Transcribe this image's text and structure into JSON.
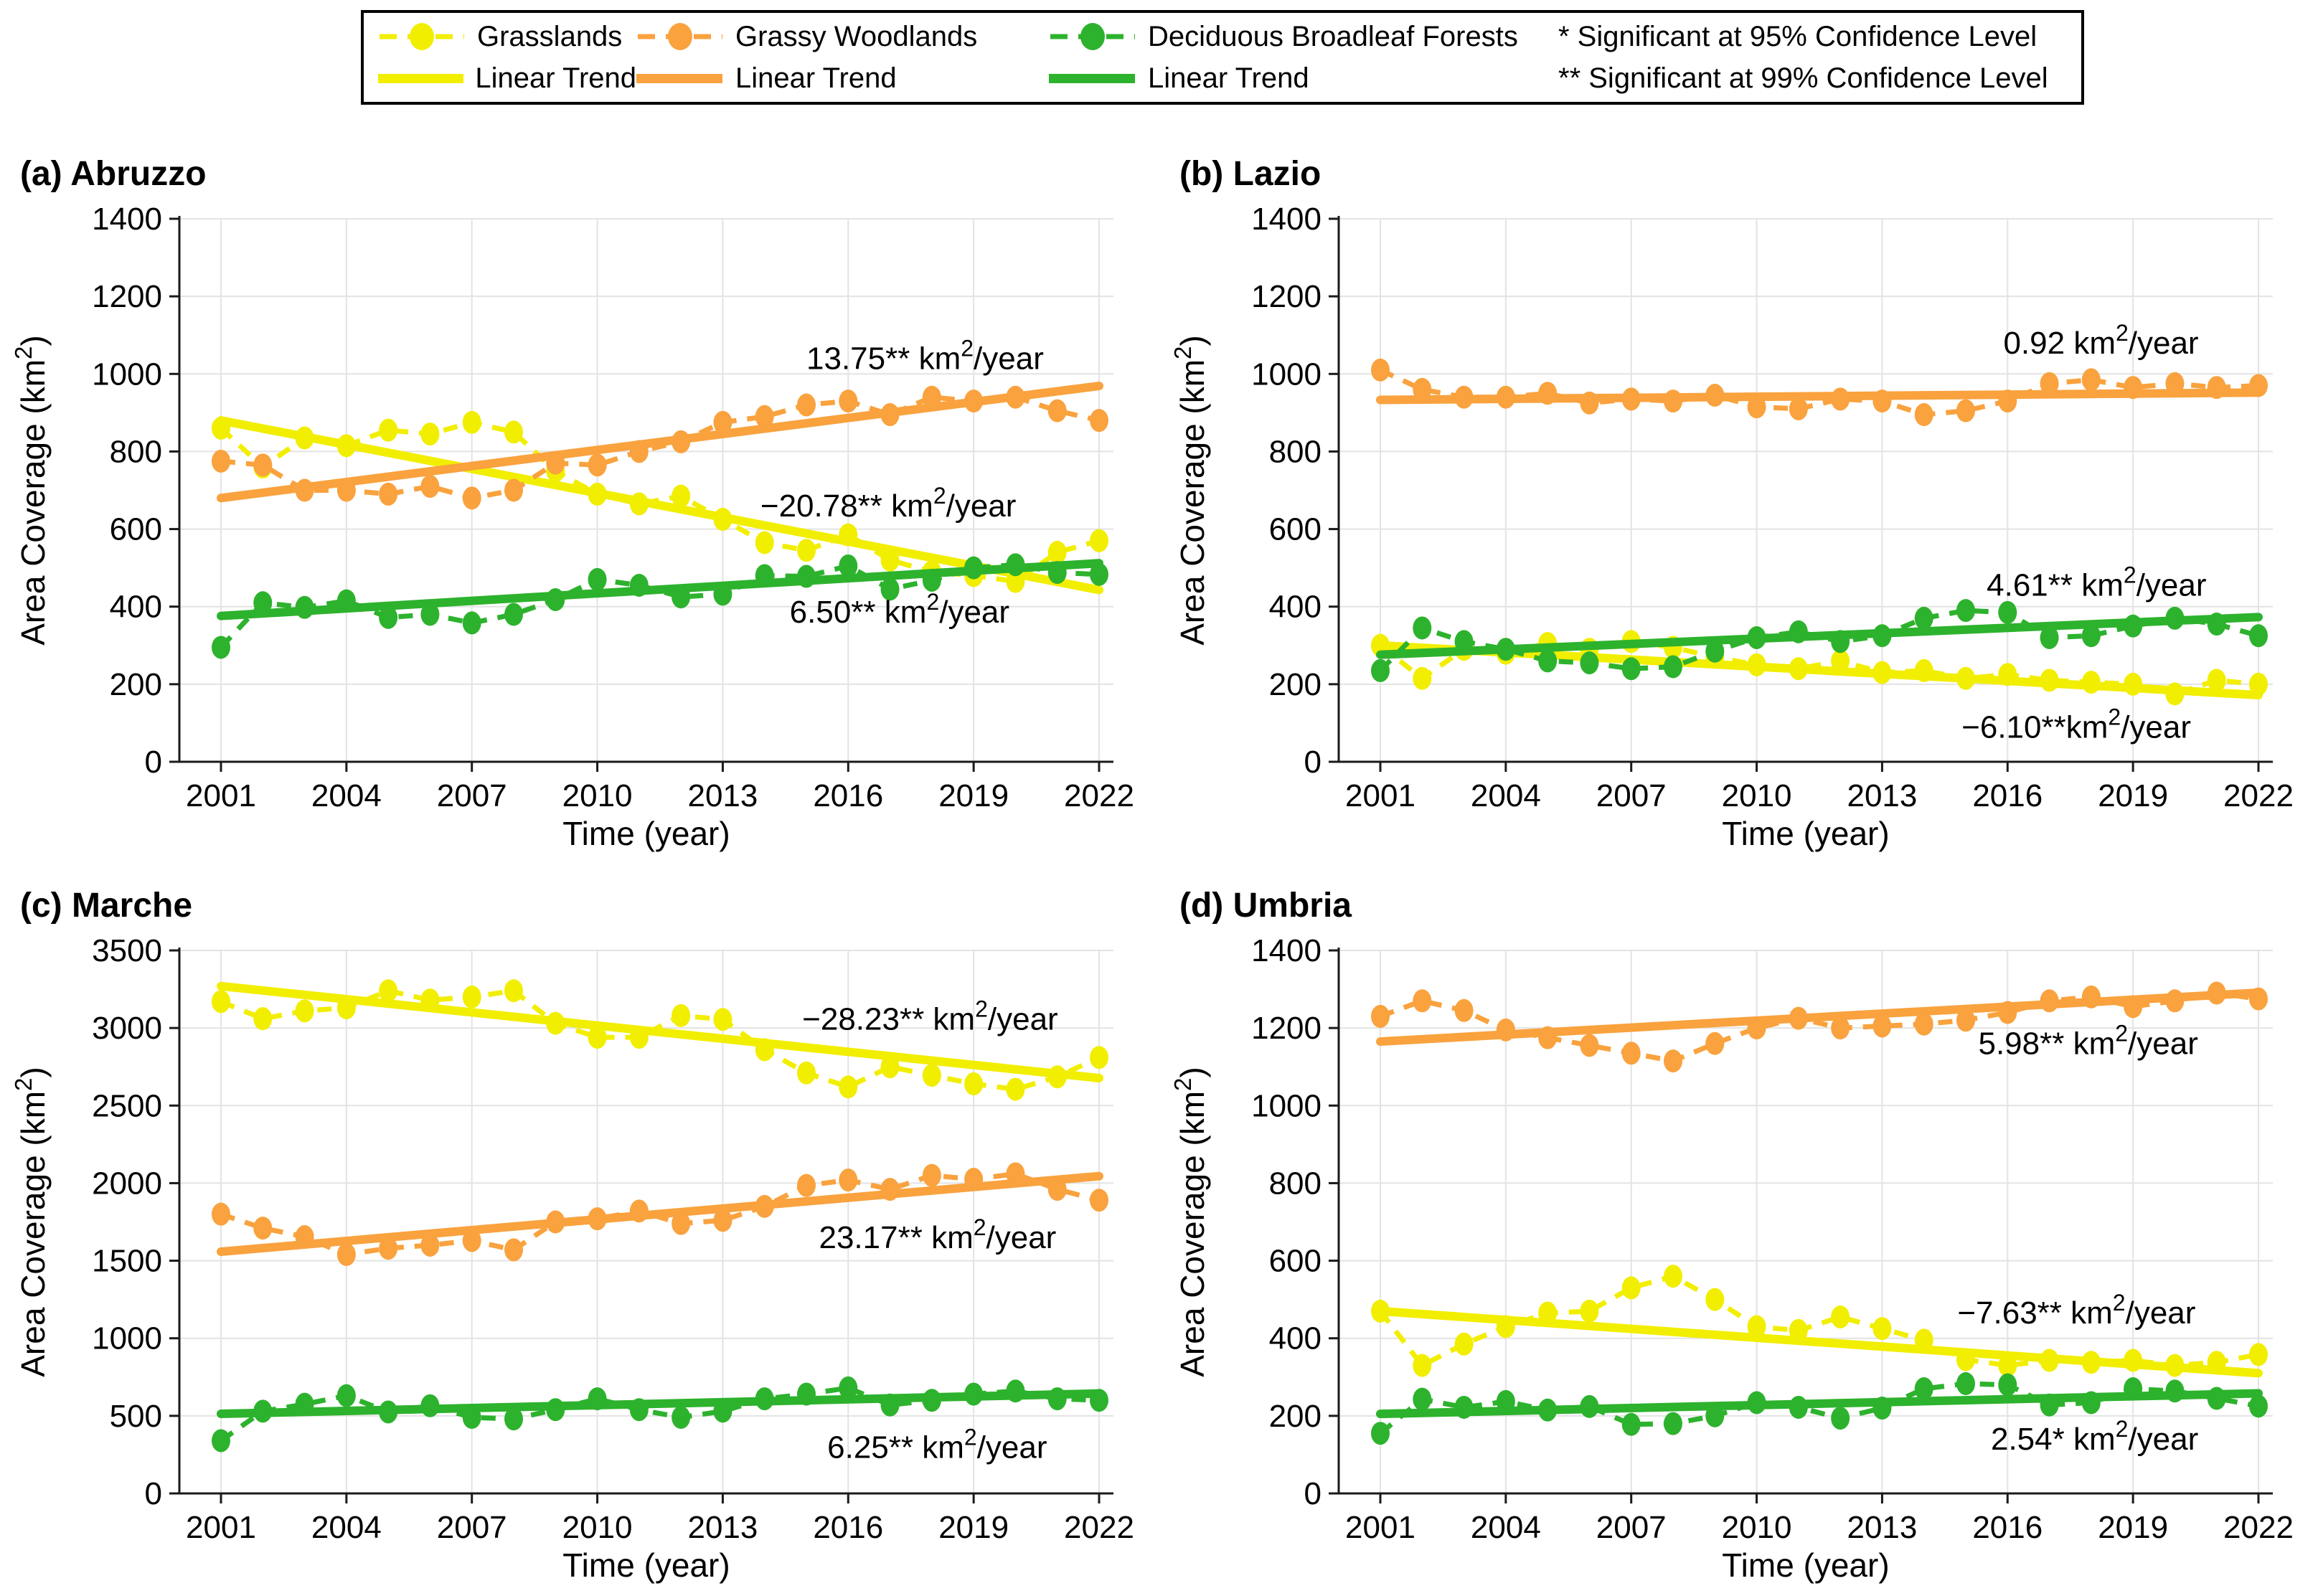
{
  "legend": {
    "series": [
      {
        "label": "Grasslands",
        "color": "#F2EE00"
      },
      {
        "label": "Grassy Woodlands",
        "color": "#F9A23E"
      },
      {
        "label": "Deciduous Broadleaf Forests",
        "color": "#2DB22D"
      }
    ],
    "trend_label": "Linear Trend",
    "notes": [
      "* Significant at 95% Confidence Level",
      "** Significant at 99% Confidence Level"
    ]
  },
  "axes": {
    "xlabel": "Time (year)",
    "ylabel": "Area Coverage (km²)"
  },
  "style": {
    "grid_color": "#E3E3E3",
    "axis_color": "#1a1a1a",
    "text_color": "#000000"
  },
  "chart_data": [
    {
      "type": "line",
      "title": "(a) Abruzzo",
      "x": [
        2001,
        2002,
        2003,
        2004,
        2005,
        2006,
        2007,
        2008,
        2009,
        2010,
        2011,
        2012,
        2013,
        2014,
        2015,
        2016,
        2017,
        2018,
        2019,
        2020,
        2021,
        2022
      ],
      "xticks": [
        2001,
        2004,
        2007,
        2010,
        2013,
        2016,
        2019,
        2022
      ],
      "ylim": [
        0,
        1400
      ],
      "yticks": [
        0,
        200,
        400,
        600,
        800,
        1000,
        1200,
        1400
      ],
      "series": [
        {
          "name": "Grasslands",
          "color": "#F2EE00",
          "values": [
            860,
            760,
            835,
            815,
            855,
            845,
            875,
            850,
            750,
            690,
            665,
            685,
            625,
            565,
            545,
            585,
            520,
            490,
            480,
            465,
            540,
            570
          ],
          "trend": {
            "start": 880,
            "end": 443,
            "label": "−20.78** km²/year",
            "label_x": 2013.9,
            "label_y": 662
          }
        },
        {
          "name": "Grassy Woodlands",
          "color": "#F9A23E",
          "values": [
            775,
            765,
            700,
            700,
            690,
            710,
            680,
            700,
            770,
            765,
            800,
            825,
            875,
            890,
            920,
            930,
            895,
            940,
            930,
            940,
            905,
            880
          ],
          "trend": {
            "start": 680,
            "end": 969,
            "label": "13.75** km²/year",
            "label_x": 2015.0,
            "label_y": 1042
          }
        },
        {
          "name": "Deciduous Broadleaf Forests",
          "color": "#2DB22D",
          "values": [
            295,
            410,
            398,
            415,
            372,
            380,
            358,
            380,
            418,
            470,
            455,
            425,
            432,
            480,
            478,
            505,
            445,
            468,
            500,
            508,
            488,
            483
          ],
          "trend": {
            "start": 376,
            "end": 512,
            "label": "6.50** km²/year",
            "label_x": 2014.6,
            "label_y": 388
          }
        }
      ]
    },
    {
      "type": "line",
      "title": "(b) Lazio",
      "x": [
        2001,
        2002,
        2003,
        2004,
        2005,
        2006,
        2007,
        2008,
        2009,
        2010,
        2011,
        2012,
        2013,
        2014,
        2015,
        2016,
        2017,
        2018,
        2019,
        2020,
        2021,
        2022
      ],
      "xticks": [
        2001,
        2004,
        2007,
        2010,
        2013,
        2016,
        2019,
        2022
      ],
      "ylim": [
        0,
        1400
      ],
      "yticks": [
        0,
        200,
        400,
        600,
        800,
        1000,
        1200,
        1400
      ],
      "series": [
        {
          "name": "Grasslands",
          "color": "#F2EE00",
          "values": [
            300,
            215,
            290,
            280,
            305,
            290,
            310,
            295,
            270,
            250,
            240,
            260,
            230,
            235,
            215,
            225,
            210,
            205,
            200,
            175,
            210,
            200
          ],
          "trend": {
            "start": 300,
            "end": 172,
            "label": "−6.10**km²/year",
            "label_x": 2014.9,
            "label_y": 92
          }
        },
        {
          "name": "Grassy Woodlands",
          "color": "#F9A23E",
          "values": [
            1010,
            960,
            940,
            940,
            950,
            925,
            935,
            930,
            945,
            915,
            910,
            935,
            930,
            895,
            905,
            930,
            975,
            985,
            965,
            975,
            965,
            970
          ],
          "trend": {
            "start": 933,
            "end": 952,
            "label": "0.92 km²/year",
            "label_x": 2015.9,
            "label_y": 1082
          }
        },
        {
          "name": "Deciduous Broadleaf Forests",
          "color": "#2DB22D",
          "values": [
            235,
            345,
            310,
            290,
            260,
            255,
            240,
            245,
            285,
            320,
            335,
            310,
            325,
            370,
            390,
            385,
            320,
            325,
            350,
            370,
            355,
            325
          ],
          "trend": {
            "start": 276,
            "end": 373,
            "label": "4.61** km²/year",
            "label_x": 2015.5,
            "label_y": 458
          }
        }
      ]
    },
    {
      "type": "line",
      "title": "(c) Marche",
      "x": [
        2001,
        2002,
        2003,
        2004,
        2005,
        2006,
        2007,
        2008,
        2009,
        2010,
        2011,
        2012,
        2013,
        2014,
        2015,
        2016,
        2017,
        2018,
        2019,
        2020,
        2021,
        2022
      ],
      "xticks": [
        2001,
        2004,
        2007,
        2010,
        2013,
        2016,
        2019,
        2022
      ],
      "ylim": [
        0,
        3500
      ],
      "yticks": [
        0,
        500,
        1000,
        1500,
        2000,
        2500,
        3000,
        3500
      ],
      "series": [
        {
          "name": "Grasslands",
          "color": "#F2EE00",
          "values": [
            3170,
            3060,
            3110,
            3130,
            3240,
            3180,
            3200,
            3240,
            3030,
            2940,
            2940,
            3080,
            3055,
            2860,
            2710,
            2620,
            2750,
            2695,
            2640,
            2605,
            2685,
            2810
          ],
          "trend": {
            "start": 3270,
            "end": 2677,
            "label": "−28.23** km²/year",
            "label_x": 2014.9,
            "label_y": 3062
          }
        },
        {
          "name": "Grassy Woodlands",
          "color": "#F9A23E",
          "values": [
            1800,
            1710,
            1655,
            1540,
            1580,
            1600,
            1630,
            1570,
            1750,
            1770,
            1820,
            1740,
            1760,
            1850,
            1985,
            2020,
            1960,
            2050,
            2025,
            2060,
            1960,
            1890
          ],
          "trend": {
            "start": 1558,
            "end": 2045,
            "label": "23.17** km²/year",
            "label_x": 2015.3,
            "label_y": 1655
          }
        },
        {
          "name": "Deciduous Broadleaf Forests",
          "color": "#2DB22D",
          "values": [
            340,
            530,
            575,
            630,
            525,
            565,
            490,
            480,
            540,
            610,
            540,
            490,
            530,
            610,
            640,
            680,
            570,
            600,
            640,
            660,
            610,
            600
          ],
          "trend": {
            "start": 513,
            "end": 644,
            "label": "6.25** km²/year",
            "label_x": 2015.5,
            "label_y": 302
          }
        }
      ]
    },
    {
      "type": "line",
      "title": "(d) Umbria",
      "x": [
        2001,
        2002,
        2003,
        2004,
        2005,
        2006,
        2007,
        2008,
        2009,
        2010,
        2011,
        2012,
        2013,
        2014,
        2015,
        2016,
        2017,
        2018,
        2019,
        2020,
        2021,
        2022
      ],
      "xticks": [
        2001,
        2004,
        2007,
        2010,
        2013,
        2016,
        2019,
        2022
      ],
      "ylim": [
        0,
        1400
      ],
      "yticks": [
        0,
        200,
        400,
        600,
        800,
        1000,
        1200,
        1400
      ],
      "series": [
        {
          "name": "Grasslands",
          "color": "#F2EE00",
          "values": [
            470,
            330,
            385,
            430,
            465,
            470,
            530,
            560,
            500,
            430,
            420,
            455,
            425,
            395,
            345,
            330,
            343,
            338,
            343,
            330,
            338,
            358
          ],
          "trend": {
            "start": 470,
            "end": 310,
            "label": "−7.63** km²/year",
            "label_x": 2014.8,
            "label_y": 468
          }
        },
        {
          "name": "Grassy Woodlands",
          "color": "#F9A23E",
          "values": [
            1230,
            1270,
            1245,
            1195,
            1175,
            1155,
            1135,
            1115,
            1160,
            1200,
            1225,
            1200,
            1205,
            1210,
            1220,
            1240,
            1270,
            1280,
            1255,
            1270,
            1290,
            1275
          ],
          "trend": {
            "start": 1165,
            "end": 1291,
            "label": "5.98** km²/year",
            "label_x": 2015.3,
            "label_y": 1162
          }
        },
        {
          "name": "Deciduous Broadleaf Forests",
          "color": "#2DB22D",
          "values": [
            155,
            243,
            222,
            237,
            215,
            224,
            178,
            180,
            200,
            234,
            222,
            194,
            220,
            270,
            283,
            280,
            228,
            234,
            270,
            264,
            245,
            225
          ],
          "trend": {
            "start": 205,
            "end": 258,
            "label": "2.54* km²/year",
            "label_x": 2015.6,
            "label_y": 142
          }
        }
      ]
    }
  ]
}
